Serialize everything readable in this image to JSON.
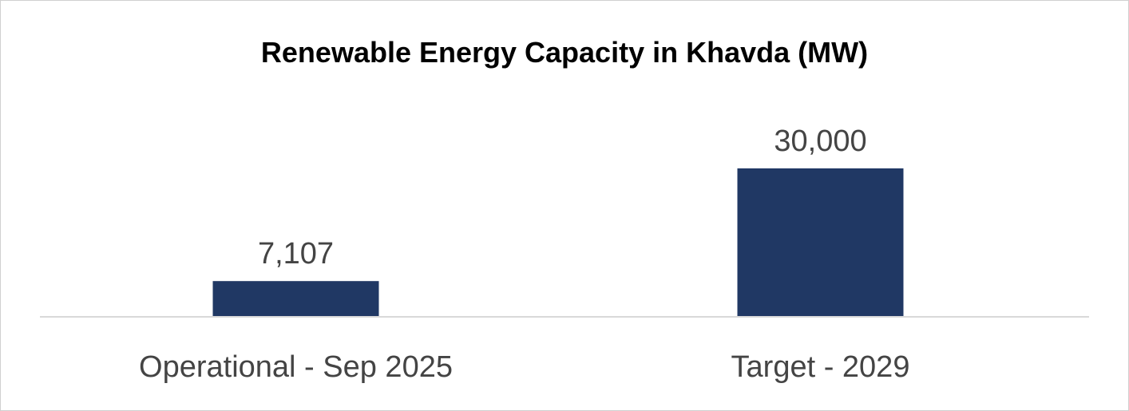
{
  "chart_data": {
    "type": "bar",
    "title": "Renewable Energy Capacity in Khavda (MW)",
    "categories": [
      "Operational - Sep 2025",
      "Target - 2029"
    ],
    "values": [
      7107,
      30000
    ],
    "data_labels": [
      "7,107",
      "30,000"
    ],
    "xlabel": "",
    "ylabel": "",
    "ylim": [
      0,
      30000
    ],
    "grid": false,
    "legend": "none",
    "bar_color": "#203864",
    "axis_color": "#d9d9d9",
    "label_color": "#444444"
  }
}
